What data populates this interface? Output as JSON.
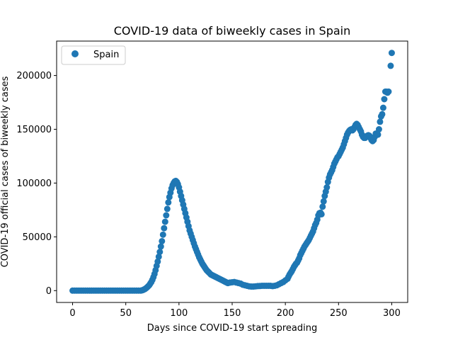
{
  "chart_data": {
    "type": "scatter",
    "title": "COVID-19 data of biweekly cases in Spain",
    "xlabel": "Days since COVID-19 start spreading",
    "ylabel": "COVID-19 official cases of biweekly cases",
    "xlim": [
      -15,
      315
    ],
    "ylim": [
      -11000,
      232000
    ],
    "xticks": [
      0,
      50,
      100,
      150,
      200,
      250,
      300
    ],
    "yticks": [
      0,
      50000,
      100000,
      150000,
      200000
    ],
    "grid": false,
    "legend": {
      "position": "top-left",
      "entries": [
        "Spain"
      ]
    },
    "series": [
      {
        "name": "Spain",
        "color": "#1f77b4",
        "points": [
          [
            0,
            0
          ],
          [
            2,
            0
          ],
          [
            4,
            0
          ],
          [
            6,
            0
          ],
          [
            8,
            0
          ],
          [
            10,
            0
          ],
          [
            12,
            0
          ],
          [
            14,
            0
          ],
          [
            16,
            0
          ],
          [
            18,
            0
          ],
          [
            20,
            0
          ],
          [
            22,
            0
          ],
          [
            24,
            0
          ],
          [
            26,
            0
          ],
          [
            28,
            0
          ],
          [
            30,
            0
          ],
          [
            32,
            0
          ],
          [
            34,
            0
          ],
          [
            36,
            0
          ],
          [
            38,
            0
          ],
          [
            40,
            0
          ],
          [
            42,
            0
          ],
          [
            44,
            0
          ],
          [
            46,
            0
          ],
          [
            48,
            0
          ],
          [
            50,
            0
          ],
          [
            52,
            0
          ],
          [
            54,
            0
          ],
          [
            56,
            0
          ],
          [
            58,
            0
          ],
          [
            60,
            0
          ],
          [
            62,
            0
          ],
          [
            64,
            0
          ],
          [
            65,
            200
          ],
          [
            66,
            500
          ],
          [
            67,
            1000
          ],
          [
            68,
            1500
          ],
          [
            69,
            2200
          ],
          [
            70,
            3000
          ],
          [
            71,
            4000
          ],
          [
            72,
            5000
          ],
          [
            73,
            6500
          ],
          [
            74,
            8000
          ],
          [
            75,
            10000
          ],
          [
            76,
            12500
          ],
          [
            77,
            15500
          ],
          [
            78,
            19000
          ],
          [
            79,
            23000
          ],
          [
            80,
            27000
          ],
          [
            81,
            31500
          ],
          [
            82,
            36000
          ],
          [
            83,
            41000
          ],
          [
            84,
            46000
          ],
          [
            85,
            52000
          ],
          [
            86,
            58000
          ],
          [
            87,
            64000
          ],
          [
            88,
            70000
          ],
          [
            89,
            76000
          ],
          [
            90,
            82000
          ],
          [
            91,
            87000
          ],
          [
            92,
            91000
          ],
          [
            93,
            95000
          ],
          [
            94,
            98000
          ],
          [
            95,
            100000
          ],
          [
            96,
            101500
          ],
          [
            97,
            102000
          ],
          [
            98,
            101000
          ],
          [
            99,
            99000
          ],
          [
            100,
            96000
          ],
          [
            101,
            92000
          ],
          [
            102,
            88000
          ],
          [
            103,
            84000
          ],
          [
            104,
            80000
          ],
          [
            105,
            76000
          ],
          [
            106,
            72000
          ],
          [
            107,
            68000
          ],
          [
            108,
            64000
          ],
          [
            109,
            60000
          ],
          [
            110,
            56000
          ],
          [
            111,
            53000
          ],
          [
            112,
            50000
          ],
          [
            113,
            47000
          ],
          [
            114,
            44000
          ],
          [
            115,
            41000
          ],
          [
            116,
            38500
          ],
          [
            117,
            36000
          ],
          [
            118,
            33500
          ],
          [
            119,
            31000
          ],
          [
            120,
            29000
          ],
          [
            121,
            27000
          ],
          [
            122,
            25000
          ],
          [
            123,
            23500
          ],
          [
            124,
            22000
          ],
          [
            125,
            20500
          ],
          [
            126,
            19000
          ],
          [
            127,
            18000
          ],
          [
            128,
            17000
          ],
          [
            129,
            16000
          ],
          [
            130,
            15000
          ],
          [
            131,
            14500
          ],
          [
            132,
            14000
          ],
          [
            133,
            13500
          ],
          [
            134,
            13000
          ],
          [
            135,
            12500
          ],
          [
            136,
            12000
          ],
          [
            137,
            11500
          ],
          [
            138,
            11000
          ],
          [
            139,
            10500
          ],
          [
            140,
            10000
          ],
          [
            141,
            9500
          ],
          [
            142,
            9000
          ],
          [
            143,
            8500
          ],
          [
            144,
            8000
          ],
          [
            145,
            7500
          ],
          [
            146,
            7000
          ],
          [
            148,
            7500
          ],
          [
            150,
            7800
          ],
          [
            152,
            8000
          ],
          [
            154,
            7500
          ],
          [
            156,
            7000
          ],
          [
            158,
            6500
          ],
          [
            160,
            5500
          ],
          [
            162,
            5000
          ],
          [
            164,
            4500
          ],
          [
            166,
            4000
          ],
          [
            168,
            3800
          ],
          [
            170,
            3800
          ],
          [
            172,
            4000
          ],
          [
            174,
            4200
          ],
          [
            176,
            4300
          ],
          [
            178,
            4500
          ],
          [
            180,
            4500
          ],
          [
            182,
            4500
          ],
          [
            184,
            4500
          ],
          [
            186,
            4500
          ],
          [
            188,
            4200
          ],
          [
            190,
            4500
          ],
          [
            192,
            5000
          ],
          [
            194,
            6000
          ],
          [
            196,
            7000
          ],
          [
            198,
            8000
          ],
          [
            200,
            9500
          ],
          [
            202,
            11000
          ],
          [
            203,
            13000
          ],
          [
            204,
            15000
          ],
          [
            205,
            16500
          ],
          [
            206,
            18000
          ],
          [
            207,
            20000
          ],
          [
            208,
            22000
          ],
          [
            209,
            23500
          ],
          [
            210,
            25000
          ],
          [
            211,
            26000
          ],
          [
            212,
            28000
          ],
          [
            213,
            30000
          ],
          [
            214,
            33000
          ],
          [
            215,
            35000
          ],
          [
            216,
            37000
          ],
          [
            217,
            39000
          ],
          [
            218,
            41000
          ],
          [
            219,
            42500
          ],
          [
            220,
            44000
          ],
          [
            221,
            45500
          ],
          [
            222,
            47000
          ],
          [
            223,
            49000
          ],
          [
            224,
            51000
          ],
          [
            225,
            53000
          ],
          [
            226,
            55000
          ],
          [
            227,
            58000
          ],
          [
            228,
            61000
          ],
          [
            229,
            63000
          ],
          [
            230,
            66000
          ],
          [
            231,
            70000
          ],
          [
            232,
            72000
          ],
          [
            233,
            72500
          ],
          [
            234,
            71000
          ],
          [
            235,
            78000
          ],
          [
            236,
            83000
          ],
          [
            237,
            88000
          ],
          [
            238,
            92000
          ],
          [
            239,
            96000
          ],
          [
            240,
            101000
          ],
          [
            241,
            105000
          ],
          [
            242,
            108000
          ],
          [
            243,
            110000
          ],
          [
            244,
            112000
          ],
          [
            245,
            115000
          ],
          [
            246,
            118000
          ],
          [
            247,
            120000
          ],
          [
            248,
            122000
          ],
          [
            249,
            124000
          ],
          [
            250,
            125000
          ],
          [
            251,
            127000
          ],
          [
            252,
            129000
          ],
          [
            253,
            131000
          ],
          [
            254,
            133000
          ],
          [
            255,
            136000
          ],
          [
            256,
            139000
          ],
          [
            257,
            142000
          ],
          [
            258,
            145000
          ],
          [
            259,
            147000
          ],
          [
            260,
            148500
          ],
          [
            261,
            149500
          ],
          [
            262,
            150000
          ],
          [
            263,
            149000
          ],
          [
            264,
            150000
          ],
          [
            265,
            152000
          ],
          [
            266,
            154000
          ],
          [
            267,
            155000
          ],
          [
            268,
            154000
          ],
          [
            269,
            152000
          ],
          [
            270,
            150000
          ],
          [
            271,
            148000
          ],
          [
            272,
            145000
          ],
          [
            273,
            143000
          ],
          [
            274,
            142000
          ],
          [
            275,
            142000
          ],
          [
            276,
            143000
          ],
          [
            277,
            144000
          ],
          [
            278,
            144500
          ],
          [
            279,
            144000
          ],
          [
            280,
            142000
          ],
          [
            281,
            140000
          ],
          [
            282,
            139000
          ],
          [
            283,
            140000
          ],
          [
            284,
            143000
          ],
          [
            285,
            146000
          ],
          [
            286,
            146000
          ],
          [
            287,
            145000
          ],
          [
            288,
            150000
          ],
          [
            289,
            157000
          ],
          [
            290,
            162000
          ],
          [
            291,
            164000
          ],
          [
            292,
            170000
          ],
          [
            293,
            178000
          ],
          [
            294,
            185000
          ],
          [
            295,
            185000
          ],
          [
            296,
            184000
          ],
          [
            297,
            185000
          ],
          [
            299,
            209000
          ],
          [
            300,
            221000
          ]
        ]
      }
    ]
  }
}
